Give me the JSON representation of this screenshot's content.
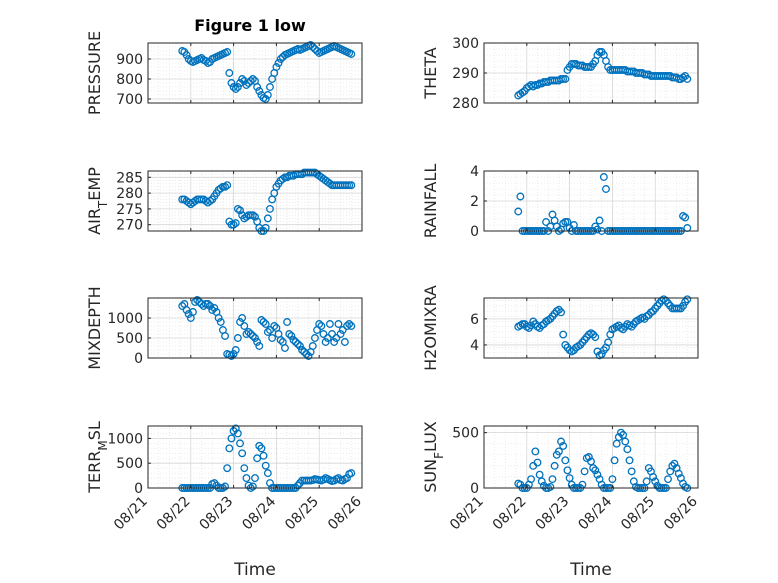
{
  "figure": {
    "title": "Figure 1 low",
    "marker_color": "#0072BD",
    "axis_color": "#262626",
    "grid": true
  },
  "chart_data": [
    {
      "type": "scatter",
      "ylabel": "PRESSURE",
      "yticks": [
        "700",
        "800",
        "900"
      ],
      "ylim": [
        680,
        980
      ],
      "xlim": [
        "08/21",
        "08/26"
      ],
      "x": [
        0.8,
        0.85,
        0.9,
        0.95,
        1.0,
        1.05,
        1.1,
        1.15,
        1.2,
        1.25,
        1.3,
        1.35,
        1.4,
        1.45,
        1.5,
        1.55,
        1.6,
        1.65,
        1.7,
        1.75,
        1.8,
        1.85,
        1.9,
        1.95,
        2.0,
        2.05,
        2.1,
        2.15,
        2.2,
        2.25,
        2.3,
        2.35,
        2.4,
        2.45,
        2.5,
        2.55,
        2.6,
        2.65,
        2.7,
        2.75,
        2.8,
        2.85,
        2.9,
        2.95,
        3.0,
        3.05,
        3.1,
        3.15,
        3.2,
        3.25,
        3.3,
        3.35,
        3.4,
        3.45,
        3.5,
        3.55,
        3.6,
        3.65,
        3.7,
        3.75,
        3.8,
        3.85,
        3.9,
        3.95,
        4.0,
        4.05,
        4.1,
        4.15,
        4.2,
        4.25,
        4.3,
        4.35,
        4.4,
        4.45,
        4.5,
        4.55,
        4.6,
        4.65,
        4.7,
        4.75
      ],
      "y": [
        940,
        935,
        920,
        900,
        890,
        885,
        890,
        895,
        900,
        905,
        895,
        890,
        880,
        885,
        900,
        905,
        910,
        915,
        920,
        925,
        930,
        935,
        830,
        780,
        760,
        750,
        760,
        780,
        800,
        790,
        770,
        780,
        790,
        800,
        790,
        760,
        740,
        720,
        705,
        700,
        720,
        760,
        800,
        830,
        860,
        880,
        900,
        910,
        920,
        925,
        930,
        935,
        940,
        945,
        950,
        945,
        950,
        955,
        960,
        965,
        970,
        960,
        950,
        940,
        930,
        935,
        940,
        945,
        950,
        955,
        960,
        965,
        960,
        955,
        950,
        945,
        940,
        935,
        930,
        925
      ]
    },
    {
      "type": "scatter",
      "ylabel": "THETA",
      "yticks": [
        "280",
        "290",
        "300"
      ],
      "ylim": [
        280,
        300
      ],
      "xlim": [
        "08/21",
        "08/26"
      ],
      "x": [
        0.8,
        0.85,
        0.9,
        0.95,
        1.0,
        1.05,
        1.1,
        1.15,
        1.2,
        1.25,
        1.3,
        1.35,
        1.4,
        1.45,
        1.5,
        1.55,
        1.6,
        1.65,
        1.7,
        1.75,
        1.8,
        1.85,
        1.9,
        1.95,
        2.0,
        2.05,
        2.1,
        2.15,
        2.2,
        2.25,
        2.3,
        2.35,
        2.4,
        2.45,
        2.5,
        2.55,
        2.6,
        2.65,
        2.7,
        2.75,
        2.8,
        2.85,
        2.9,
        2.95,
        3.0,
        3.05,
        3.1,
        3.15,
        3.2,
        3.25,
        3.3,
        3.35,
        3.4,
        3.45,
        3.5,
        3.55,
        3.6,
        3.65,
        3.7,
        3.75,
        3.8,
        3.85,
        3.9,
        3.95,
        4.0,
        4.05,
        4.1,
        4.15,
        4.2,
        4.25,
        4.3,
        4.35,
        4.4,
        4.45,
        4.5,
        4.55,
        4.6,
        4.65,
        4.7,
        4.75
      ],
      "y": [
        282.5,
        283,
        283.5,
        284,
        285,
        285.5,
        286,
        285.5,
        286,
        286,
        286.5,
        286.5,
        287,
        287,
        287,
        287.5,
        287.5,
        287.5,
        287.5,
        287.5,
        288,
        288,
        288,
        291,
        292,
        293,
        293,
        293,
        292.5,
        292.5,
        292.5,
        292,
        292,
        292,
        292,
        293,
        294,
        296,
        297,
        297,
        296,
        294,
        292,
        291,
        291,
        291,
        291,
        291,
        291,
        291,
        291,
        290.5,
        290.5,
        290.5,
        290.5,
        290,
        290,
        290,
        290,
        289.5,
        289.5,
        289.5,
        289,
        289,
        289,
        289,
        289,
        289,
        289,
        289,
        289,
        289,
        288.5,
        288.5,
        288.5,
        288,
        288,
        288.5,
        289,
        288
      ]
    },
    {
      "type": "scatter",
      "ylabel": "AIR_TEMP",
      "yticks": [
        "270",
        "275",
        "280",
        "285"
      ],
      "ylim": [
        268,
        287
      ],
      "xlim": [
        "08/21",
        "08/26"
      ],
      "x": [
        0.8,
        0.85,
        0.9,
        0.95,
        1.0,
        1.05,
        1.1,
        1.15,
        1.2,
        1.25,
        1.3,
        1.35,
        1.4,
        1.45,
        1.5,
        1.55,
        1.6,
        1.65,
        1.7,
        1.75,
        1.8,
        1.85,
        1.9,
        1.95,
        2.0,
        2.05,
        2.1,
        2.15,
        2.2,
        2.25,
        2.3,
        2.35,
        2.4,
        2.45,
        2.5,
        2.55,
        2.6,
        2.65,
        2.7,
        2.75,
        2.8,
        2.85,
        2.9,
        2.95,
        3.0,
        3.05,
        3.1,
        3.15,
        3.2,
        3.25,
        3.3,
        3.35,
        3.4,
        3.45,
        3.5,
        3.55,
        3.6,
        3.65,
        3.7,
        3.75,
        3.8,
        3.85,
        3.9,
        3.95,
        4.0,
        4.05,
        4.1,
        4.15,
        4.2,
        4.25,
        4.3,
        4.35,
        4.4,
        4.45,
        4.5,
        4.55,
        4.6,
        4.65,
        4.7,
        4.75
      ],
      "y": [
        278,
        278,
        277.5,
        277,
        276.5,
        277,
        277.5,
        278,
        278,
        278,
        278,
        277.5,
        277,
        277.5,
        278,
        279,
        280,
        281,
        281.5,
        282,
        282,
        282.5,
        271,
        270,
        270,
        270.5,
        275,
        274.5,
        273,
        272,
        272.5,
        273,
        273,
        273,
        272.5,
        271,
        269,
        268,
        268,
        269,
        272,
        275,
        278,
        280,
        282,
        283,
        284,
        284.5,
        285,
        285,
        285.5,
        285.5,
        285.5,
        286,
        286,
        286,
        286,
        286.5,
        286.5,
        286.5,
        286.5,
        286.5,
        286.5,
        286,
        285.5,
        285,
        284.5,
        284,
        283.5,
        283,
        282.5,
        282.5,
        282.5,
        282.5,
        282.5,
        282.5,
        282.5,
        282.5,
        282.5,
        282.5
      ]
    },
    {
      "type": "scatter",
      "ylabel": "RAINFALL",
      "yticks": [
        "0",
        "2",
        "4"
      ],
      "ylim": [
        0,
        4
      ],
      "xlim": [
        "08/21",
        "08/26"
      ],
      "x": [
        0.8,
        0.85,
        0.9,
        0.95,
        1.0,
        1.05,
        1.1,
        1.15,
        1.2,
        1.25,
        1.3,
        1.35,
        1.4,
        1.45,
        1.5,
        1.55,
        1.6,
        1.65,
        1.7,
        1.75,
        1.8,
        1.85,
        1.9,
        1.95,
        2.0,
        2.05,
        2.1,
        2.15,
        2.2,
        2.25,
        2.3,
        2.35,
        2.4,
        2.45,
        2.5,
        2.55,
        2.6,
        2.65,
        2.7,
        2.75,
        2.8,
        2.85,
        2.9,
        2.95,
        3.0,
        3.05,
        3.1,
        3.15,
        3.2,
        3.25,
        3.3,
        3.35,
        3.4,
        3.45,
        3.5,
        3.55,
        3.6,
        3.65,
        3.7,
        3.75,
        3.8,
        3.85,
        3.9,
        3.95,
        4.0,
        4.05,
        4.1,
        4.15,
        4.2,
        4.25,
        4.3,
        4.35,
        4.4,
        4.45,
        4.5,
        4.55,
        4.6,
        4.65,
        4.7,
        4.75
      ],
      "y": [
        1.3,
        2.3,
        0,
        0,
        0,
        0,
        0,
        0,
        0,
        0,
        0,
        0,
        0,
        0.6,
        0,
        0.3,
        1.1,
        0.7,
        0.3,
        0,
        0.1,
        0.5,
        0.6,
        0.6,
        0.2,
        0,
        0.4,
        0,
        0,
        0,
        0,
        0,
        0,
        0,
        0,
        0,
        0.3,
        0.1,
        0.7,
        0,
        3.6,
        2.8,
        0,
        0,
        0,
        0,
        0,
        0,
        0,
        0,
        0,
        0,
        0,
        0,
        0,
        0,
        0,
        0,
        0,
        0,
        0,
        0,
        0,
        0,
        0,
        0,
        0,
        0,
        0,
        0,
        0,
        0,
        0,
        0,
        0,
        0,
        0,
        1,
        0.9,
        0.2
      ]
    },
    {
      "type": "scatter",
      "ylabel": "MIXDEPTH",
      "yticks": [
        "0",
        "500",
        "1000"
      ],
      "ylim": [
        0,
        1500
      ],
      "xlim": [
        "08/21",
        "08/26"
      ],
      "x": [
        0.8,
        0.85,
        0.9,
        0.95,
        1.0,
        1.05,
        1.1,
        1.15,
        1.2,
        1.25,
        1.3,
        1.35,
        1.4,
        1.45,
        1.5,
        1.55,
        1.6,
        1.65,
        1.7,
        1.75,
        1.8,
        1.85,
        1.9,
        1.95,
        2.0,
        2.05,
        2.1,
        2.15,
        2.2,
        2.25,
        2.3,
        2.35,
        2.4,
        2.45,
        2.5,
        2.55,
        2.6,
        2.65,
        2.7,
        2.75,
        2.8,
        2.85,
        2.9,
        2.95,
        3.0,
        3.05,
        3.1,
        3.15,
        3.2,
        3.25,
        3.3,
        3.35,
        3.4,
        3.45,
        3.5,
        3.55,
        3.6,
        3.65,
        3.7,
        3.75,
        3.8,
        3.85,
        3.9,
        3.95,
        4.0,
        4.05,
        4.1,
        4.15,
        4.2,
        4.25,
        4.3,
        4.35,
        4.4,
        4.45,
        4.5,
        4.55,
        4.6,
        4.65,
        4.7,
        4.75
      ],
      "y": [
        1300,
        1350,
        1200,
        1100,
        1000,
        1150,
        1400,
        1450,
        1400,
        1350,
        1300,
        1350,
        1350,
        1300,
        1200,
        1250,
        1150,
        1000,
        900,
        700,
        550,
        100,
        80,
        50,
        100,
        200,
        500,
        900,
        1000,
        800,
        600,
        650,
        600,
        550,
        500,
        400,
        300,
        950,
        900,
        850,
        650,
        700,
        500,
        800,
        750,
        600,
        450,
        400,
        250,
        900,
        600,
        550,
        450,
        400,
        350,
        300,
        200,
        150,
        100,
        50,
        150,
        300,
        500,
        700,
        850,
        800,
        600,
        400,
        500,
        850,
        600,
        400,
        500,
        850,
        600,
        700,
        400,
        800,
        850,
        800
      ]
    },
    {
      "type": "scatter",
      "ylabel": "H2OMIXRA",
      "yticks": [
        "4",
        "6"
      ],
      "ylim": [
        3,
        7.6
      ],
      "xlim": [
        "08/21",
        "08/26"
      ],
      "x": [
        0.8,
        0.85,
        0.9,
        0.95,
        1.0,
        1.05,
        1.1,
        1.15,
        1.2,
        1.25,
        1.3,
        1.35,
        1.4,
        1.45,
        1.5,
        1.55,
        1.6,
        1.65,
        1.7,
        1.75,
        1.8,
        1.85,
        1.9,
        1.95,
        2.0,
        2.05,
        2.1,
        2.15,
        2.2,
        2.25,
        2.3,
        2.35,
        2.4,
        2.45,
        2.5,
        2.55,
        2.6,
        2.65,
        2.7,
        2.75,
        2.8,
        2.85,
        2.9,
        2.95,
        3.0,
        3.05,
        3.1,
        3.15,
        3.2,
        3.25,
        3.3,
        3.35,
        3.4,
        3.45,
        3.5,
        3.55,
        3.6,
        3.65,
        3.7,
        3.75,
        3.8,
        3.85,
        3.9,
        3.95,
        4.0,
        4.05,
        4.1,
        4.15,
        4.2,
        4.25,
        4.3,
        4.35,
        4.4,
        4.45,
        4.5,
        4.55,
        4.6,
        4.65,
        4.7,
        4.75
      ],
      "y": [
        5.4,
        5.5,
        5.6,
        5.6,
        5.4,
        5.3,
        5.5,
        5.8,
        5.6,
        5.4,
        5.3,
        5.5,
        5.6,
        5.8,
        5.9,
        6.0,
        6.2,
        6.4,
        6.6,
        6.7,
        6.5,
        4.8,
        4.0,
        3.8,
        3.6,
        3.5,
        3.6,
        3.8,
        3.9,
        4.0,
        4.2,
        4.4,
        4.6,
        4.8,
        4.9,
        4.8,
        4.6,
        3.5,
        3.2,
        3.3,
        3.6,
        3.8,
        4.2,
        4.8,
        5.2,
        5.3,
        5.4,
        5.5,
        5.3,
        5.2,
        5.4,
        5.6,
        5.5,
        5.4,
        5.6,
        5.8,
        5.9,
        6.0,
        6.1,
        6.0,
        6.2,
        6.3,
        6.5,
        6.6,
        6.8,
        7.0,
        7.2,
        7.4,
        7.5,
        7.4,
        7.2,
        7.0,
        6.8,
        6.8,
        6.8,
        6.8,
        6.8,
        7.0,
        7.3,
        7.5
      ]
    },
    {
      "type": "scatter",
      "ylabel": "TERR_MSL",
      "yticks": [
        "0",
        "500",
        "1000"
      ],
      "ylim": [
        0,
        1250
      ],
      "xlim": [
        "08/21",
        "08/26"
      ],
      "xticks": [
        "08/21",
        "08/22",
        "08/23",
        "08/24",
        "08/25",
        "08/26"
      ],
      "xlabel": "Time",
      "x": [
        0.8,
        0.85,
        0.9,
        0.95,
        1.0,
        1.05,
        1.1,
        1.15,
        1.2,
        1.25,
        1.3,
        1.35,
        1.4,
        1.45,
        1.5,
        1.55,
        1.6,
        1.65,
        1.7,
        1.75,
        1.8,
        1.85,
        1.9,
        1.95,
        2.0,
        2.05,
        2.1,
        2.15,
        2.2,
        2.25,
        2.3,
        2.35,
        2.4,
        2.45,
        2.5,
        2.55,
        2.6,
        2.65,
        2.7,
        2.75,
        2.8,
        2.85,
        2.9,
        2.95,
        3.0,
        3.05,
        3.1,
        3.15,
        3.2,
        3.25,
        3.3,
        3.35,
        3.4,
        3.45,
        3.5,
        3.55,
        3.6,
        3.65,
        3.7,
        3.75,
        3.8,
        3.85,
        3.9,
        3.95,
        4.0,
        4.05,
        4.1,
        4.15,
        4.2,
        4.25,
        4.3,
        4.35,
        4.4,
        4.45,
        4.5,
        4.55,
        4.6,
        4.65,
        4.7,
        4.75
      ],
      "y": [
        0,
        0,
        0,
        0,
        0,
        0,
        0,
        0,
        0,
        0,
        0,
        0,
        0,
        0,
        80,
        100,
        50,
        0,
        0,
        0,
        30,
        400,
        800,
        1000,
        1150,
        1200,
        1100,
        900,
        700,
        400,
        200,
        50,
        0,
        30,
        200,
        600,
        850,
        800,
        650,
        450,
        300,
        100,
        0,
        0,
        0,
        0,
        0,
        0,
        0,
        0,
        0,
        0,
        0,
        0,
        50,
        100,
        150,
        150,
        150,
        150,
        150,
        160,
        180,
        170,
        160,
        150,
        170,
        200,
        180,
        160,
        140,
        150,
        180,
        200,
        160,
        150,
        180,
        200,
        280,
        300
      ]
    },
    {
      "type": "scatter",
      "ylabel": "SUN_FLUX",
      "yticks": [
        "0",
        "500"
      ],
      "ylim": [
        0,
        560
      ],
      "xlim": [
        "08/21",
        "08/26"
      ],
      "xticks": [
        "08/21",
        "08/22",
        "08/23",
        "08/24",
        "08/25",
        "08/26"
      ],
      "xlabel": "Time",
      "x": [
        0.8,
        0.85,
        0.9,
        0.95,
        1.0,
        1.05,
        1.1,
        1.15,
        1.2,
        1.25,
        1.3,
        1.35,
        1.4,
        1.45,
        1.5,
        1.55,
        1.6,
        1.65,
        1.7,
        1.75,
        1.8,
        1.85,
        1.9,
        1.95,
        2.0,
        2.05,
        2.1,
        2.15,
        2.2,
        2.25,
        2.3,
        2.35,
        2.4,
        2.45,
        2.5,
        2.55,
        2.6,
        2.65,
        2.7,
        2.75,
        2.8,
        2.85,
        2.9,
        2.95,
        3.0,
        3.05,
        3.1,
        3.15,
        3.2,
        3.25,
        3.3,
        3.35,
        3.4,
        3.45,
        3.5,
        3.55,
        3.6,
        3.65,
        3.7,
        3.75,
        3.8,
        3.85,
        3.9,
        3.95,
        4.0,
        4.05,
        4.1,
        4.15,
        4.2,
        4.25,
        4.3,
        4.35,
        4.4,
        4.45,
        4.5,
        4.55,
        4.6,
        4.65,
        4.7,
        4.75
      ],
      "y": [
        40,
        30,
        0,
        0,
        0,
        30,
        80,
        200,
        330,
        230,
        120,
        60,
        20,
        0,
        0,
        10,
        80,
        200,
        300,
        330,
        420,
        380,
        250,
        160,
        90,
        30,
        0,
        0,
        0,
        0,
        30,
        150,
        270,
        280,
        240,
        180,
        160,
        120,
        80,
        30,
        0,
        0,
        0,
        0,
        80,
        250,
        400,
        460,
        500,
        480,
        420,
        350,
        250,
        150,
        60,
        10,
        0,
        0,
        0,
        0,
        60,
        180,
        150,
        100,
        60,
        20,
        0,
        0,
        0,
        0,
        80,
        150,
        200,
        220,
        180,
        130,
        90,
        40,
        10,
        0
      ]
    }
  ]
}
